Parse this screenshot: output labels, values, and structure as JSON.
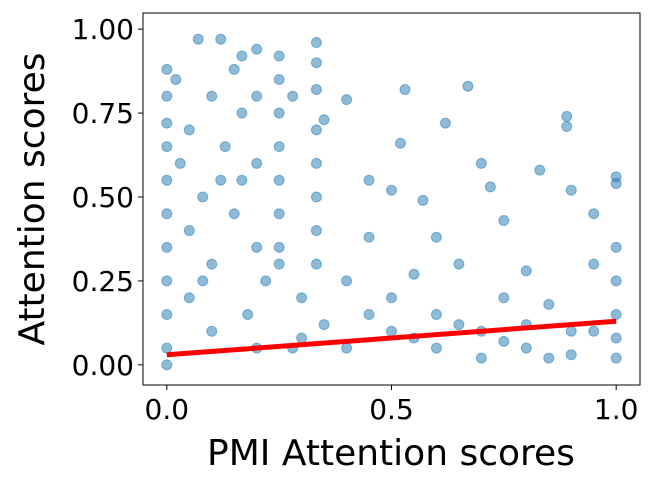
{
  "chart_data": {
    "type": "scatter",
    "xlabel": "PMI Attention scores",
    "ylabel": "Attention scores",
    "xlim": [
      -0.053,
      1.053
    ],
    "ylim": [
      -0.06,
      1.048
    ],
    "xticks": [
      {
        "value": 0,
        "label": "0.0"
      },
      {
        "value": 0.5,
        "label": "0.5"
      },
      {
        "value": 1,
        "label": "1.0"
      }
    ],
    "yticks": [
      {
        "value": 0,
        "label": "0.00"
      },
      {
        "value": 0.25,
        "label": "0.25"
      },
      {
        "value": 0.5,
        "label": "0.50"
      },
      {
        "value": 0.75,
        "label": "0.75"
      },
      {
        "value": 1,
        "label": "1.00"
      }
    ],
    "series": [
      {
        "color": "#1f77b4",
        "x": [
          0,
          0,
          0,
          0,
          0,
          0,
          0,
          0,
          0,
          0,
          0,
          0.02,
          0.03,
          0.05,
          0.07,
          0.08,
          0.1,
          0.12,
          0.13,
          0.15,
          0.167,
          0.167,
          0.167,
          0.2,
          0.2,
          0.2,
          0.2,
          0.25,
          0.25,
          0.25,
          0.25,
          0.25,
          0.25,
          0.25,
          0.25,
          0.333,
          0.333,
          0.333,
          0.333,
          0.333,
          0.333,
          0.333,
          0.333,
          0.28,
          0.35,
          0.4,
          0.45,
          0.5,
          0.53,
          0.52,
          0.57,
          0.6,
          0.62,
          0.67,
          0.7,
          0.72,
          0.75,
          0.8,
          0.83,
          0.89,
          0.89,
          0.9,
          0.95,
          1,
          1,
          1,
          1,
          1,
          1,
          1,
          0.05,
          0.1,
          0.15,
          0.3,
          0.4,
          0.45,
          0.5,
          0.55,
          0.6,
          0.65,
          0.7,
          0.75,
          0.8,
          0.85,
          0.9,
          0.95,
          0.1,
          0.2,
          0.3,
          0.4,
          0.5,
          0.6,
          0.7,
          0.8,
          0.9,
          0.45,
          0.35,
          0.55,
          0.65,
          0.75,
          0.85,
          0.95,
          0.05,
          0.12,
          0.08,
          0.18,
          0.22,
          0.28
        ],
        "values": [
          0.88,
          0.8,
          0.72,
          0.65,
          0.55,
          0.45,
          0.35,
          0.25,
          0.15,
          0.05,
          0,
          0.85,
          0.6,
          0.7,
          0.97,
          0.5,
          0.8,
          0.97,
          0.65,
          0.88,
          0.92,
          0.75,
          0.55,
          0.94,
          0.8,
          0.6,
          0.35,
          0.92,
          0.85,
          0.75,
          0.65,
          0.55,
          0.45,
          0.35,
          0.3,
          0.96,
          0.9,
          0.82,
          0.7,
          0.6,
          0.5,
          0.4,
          0.3,
          0.8,
          0.73,
          0.79,
          0.55,
          0.52,
          0.82,
          0.66,
          0.49,
          0.38,
          0.72,
          0.83,
          0.6,
          0.53,
          0.43,
          0.28,
          0.58,
          0.74,
          0.71,
          0.52,
          0.45,
          0.56,
          0.54,
          0.35,
          0.25,
          0.15,
          0.08,
          0.02,
          0.4,
          0.3,
          0.45,
          0.2,
          0.25,
          0.38,
          0.2,
          0.27,
          0.15,
          0.3,
          0.1,
          0.2,
          0.05,
          0.18,
          0.1,
          0.3,
          0.1,
          0.05,
          0.08,
          0.05,
          0.1,
          0.05,
          0.02,
          0.12,
          0.03,
          0.15,
          0.12,
          0.08,
          0.12,
          0.07,
          0.02,
          0.1,
          0.2,
          0.55,
          0.25,
          0.15,
          0.25,
          0.05
        ]
      }
    ],
    "trendline": {
      "color": "#ff0000",
      "x": [
        0,
        1
      ],
      "values": [
        0.03,
        0.13
      ]
    }
  }
}
